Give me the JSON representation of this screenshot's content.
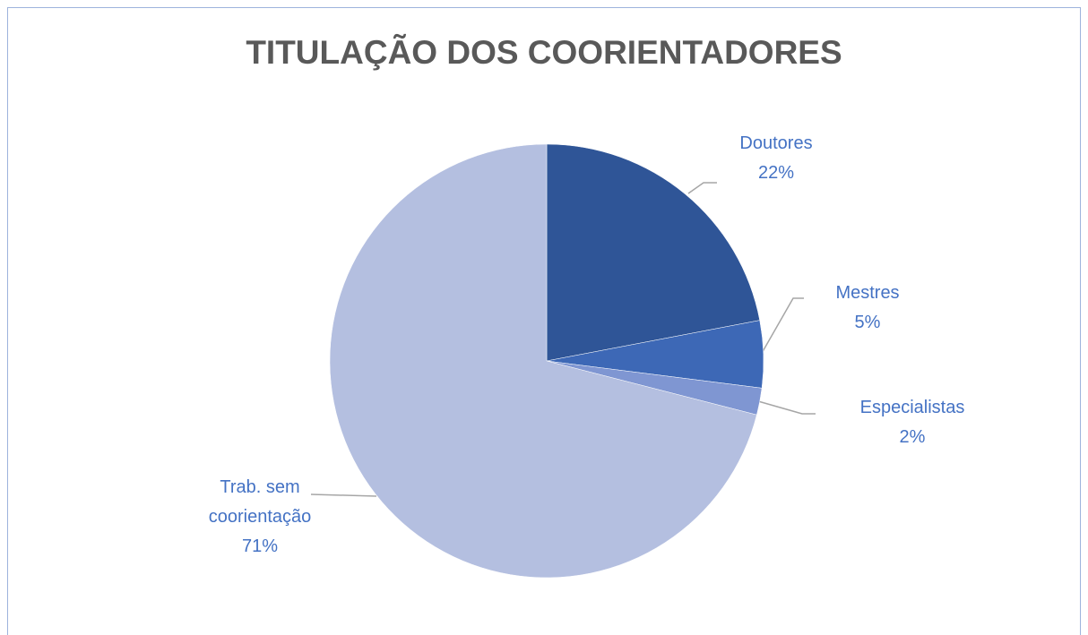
{
  "chart_data": {
    "type": "pie",
    "title": "TITULAÇÃO DOS COORIENTADORES",
    "categories": [
      "Doutores",
      "Mestres",
      "Especialistas",
      "Trab. sem coorientação"
    ],
    "values": [
      22,
      5,
      2,
      71
    ],
    "value_labels": [
      "22%",
      "5%",
      "2%",
      "71%"
    ],
    "colors": [
      "#2f5597",
      "#3d68b6",
      "#7f96d2",
      "#b4bfe0"
    ]
  }
}
